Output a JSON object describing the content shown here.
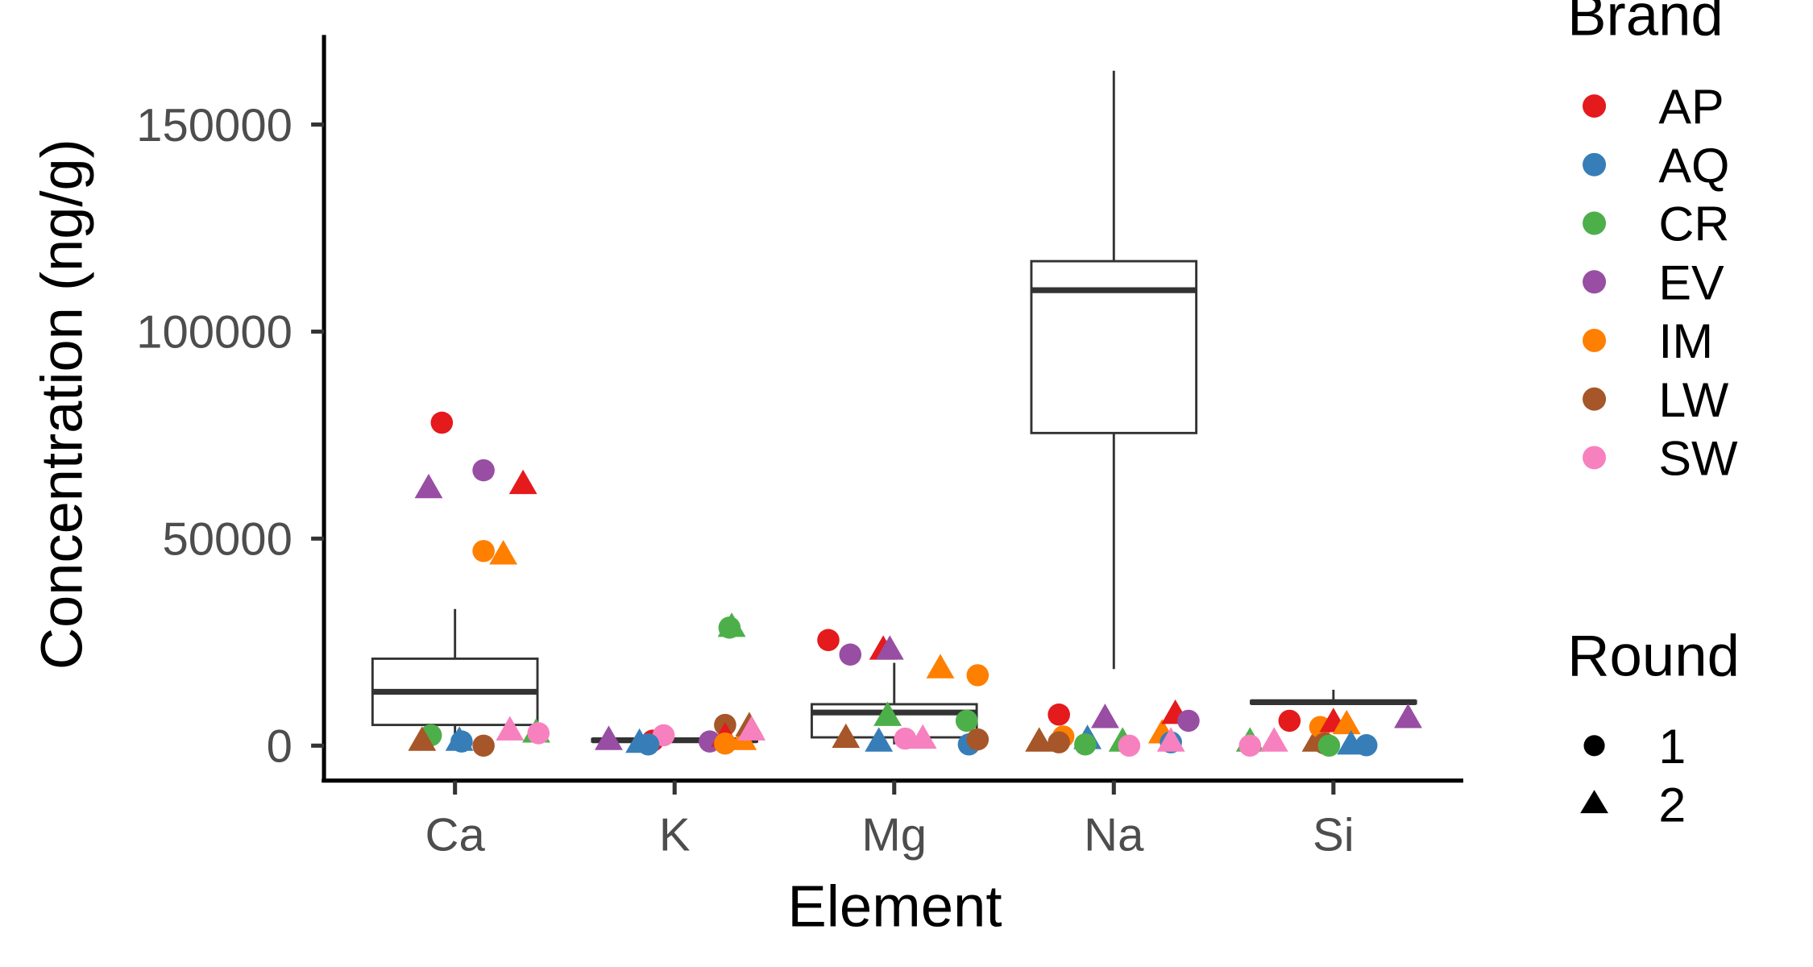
{
  "chart_data": {
    "type": "box+scatter",
    "xlabel": "Element",
    "ylabel": "Concentration (ng/g)",
    "ylim": [
      -8500,
      172000
    ],
    "yticks": [
      0,
      50000,
      100000,
      150000
    ],
    "ytick_labels": [
      "0",
      "50000",
      "100000",
      "150000"
    ],
    "categories": [
      "Ca",
      "K",
      "Mg",
      "Na",
      "Si"
    ],
    "grid": false,
    "legend_placement": "right",
    "legend": {
      "brand_title": "Brand",
      "brands": [
        {
          "name": "AP",
          "color": "#E41A1C"
        },
        {
          "name": "AQ",
          "color": "#377EB8"
        },
        {
          "name": "CR",
          "color": "#4DAF4A"
        },
        {
          "name": "EV",
          "color": "#984EA3"
        },
        {
          "name": "IM",
          "color": "#FF7F00"
        },
        {
          "name": "LW",
          "color": "#A65628"
        },
        {
          "name": "SW",
          "color": "#F781BF"
        }
      ],
      "round_title": "Round",
      "rounds": [
        {
          "name": "1",
          "shape": "circle"
        },
        {
          "name": "2",
          "shape": "triangle"
        }
      ]
    },
    "boxes": [
      {
        "category": "Ca",
        "low": 0,
        "q1": 5000,
        "median": 13000,
        "q3": 21000,
        "high": 33000
      },
      {
        "category": "K",
        "low": 800,
        "q1": 1000,
        "median": 1300,
        "q3": 1600,
        "high": 2000
      },
      {
        "category": "Mg",
        "low": 300,
        "q1": 2000,
        "median": 8000,
        "q3": 10000,
        "high": 20000
      },
      {
        "category": "Na",
        "low": 18500,
        "q1": 75500,
        "median": 110000,
        "q3": 117000,
        "high": 163000
      },
      {
        "category": "Si",
        "low": 9800,
        "q1": 10200,
        "median": 10500,
        "q3": 10800,
        "high": 13500
      }
    ],
    "points": [
      {
        "element": "Ca",
        "brand": "AP",
        "round": "1",
        "value": 78000
      },
      {
        "element": "Ca",
        "brand": "EV",
        "round": "2",
        "value": 62000
      },
      {
        "element": "Ca",
        "brand": "EV",
        "round": "1",
        "value": 66500
      },
      {
        "element": "Ca",
        "brand": "AP",
        "round": "2",
        "value": 63000
      },
      {
        "element": "Ca",
        "brand": "IM",
        "round": "1",
        "value": 47000
      },
      {
        "element": "Ca",
        "brand": "IM",
        "round": "2",
        "value": 46000
      },
      {
        "element": "Ca",
        "brand": "CR",
        "round": "1",
        "value": 2500
      },
      {
        "element": "Ca",
        "brand": "LW",
        "round": "2",
        "value": 1000
      },
      {
        "element": "Ca",
        "brand": "AQ",
        "round": "1",
        "value": 1000
      },
      {
        "element": "Ca",
        "brand": "AQ",
        "round": "2",
        "value": 1000
      },
      {
        "element": "Ca",
        "brand": "LW",
        "round": "1",
        "value": 0
      },
      {
        "element": "Ca",
        "brand": "SW",
        "round": "2",
        "value": 3500
      },
      {
        "element": "Ca",
        "brand": "CR",
        "round": "2",
        "value": 3000
      },
      {
        "element": "Ca",
        "brand": "SW",
        "round": "1",
        "value": 3000
      },
      {
        "element": "K",
        "brand": "EV",
        "round": "2",
        "value": 1200
      },
      {
        "element": "K",
        "brand": "AQ",
        "round": "2",
        "value": 500
      },
      {
        "element": "K",
        "brand": "AP",
        "round": "1",
        "value": 1200
      },
      {
        "element": "K",
        "brand": "SW",
        "round": "1",
        "value": 2500
      },
      {
        "element": "K",
        "brand": "AQ",
        "round": "1",
        "value": 300
      },
      {
        "element": "K",
        "brand": "EV",
        "round": "1",
        "value": 1000
      },
      {
        "element": "K",
        "brand": "LW",
        "round": "1",
        "value": 5000
      },
      {
        "element": "K",
        "brand": "CR",
        "round": "2",
        "value": 28500
      },
      {
        "element": "K",
        "brand": "CR",
        "round": "1",
        "value": 28500
      },
      {
        "element": "K",
        "brand": "AP",
        "round": "2",
        "value": 2000
      },
      {
        "element": "K",
        "brand": "IM",
        "round": "1",
        "value": 500
      },
      {
        "element": "K",
        "brand": "IM",
        "round": "2",
        "value": 1200
      },
      {
        "element": "K",
        "brand": "LW",
        "round": "2",
        "value": 4500
      },
      {
        "element": "K",
        "brand": "SW",
        "round": "2",
        "value": 3500
      },
      {
        "element": "Mg",
        "brand": "AP",
        "round": "1",
        "value": 25500
      },
      {
        "element": "Mg",
        "brand": "EV",
        "round": "1",
        "value": 22000
      },
      {
        "element": "Mg",
        "brand": "AP",
        "round": "2",
        "value": 23000
      },
      {
        "element": "Mg",
        "brand": "EV",
        "round": "2",
        "value": 23000
      },
      {
        "element": "Mg",
        "brand": "IM",
        "round": "2",
        "value": 18500
      },
      {
        "element": "Mg",
        "brand": "IM",
        "round": "1",
        "value": 17000
      },
      {
        "element": "Mg",
        "brand": "CR",
        "round": "2",
        "value": 7000
      },
      {
        "element": "Mg",
        "brand": "CR",
        "round": "1",
        "value": 6000
      },
      {
        "element": "Mg",
        "brand": "LW",
        "round": "2",
        "value": 1700
      },
      {
        "element": "Mg",
        "brand": "AQ",
        "round": "2",
        "value": 800
      },
      {
        "element": "Mg",
        "brand": "SW",
        "round": "1",
        "value": 1700
      },
      {
        "element": "Mg",
        "brand": "SW",
        "round": "2",
        "value": 1500
      },
      {
        "element": "Mg",
        "brand": "AQ",
        "round": "1",
        "value": 300
      },
      {
        "element": "Mg",
        "brand": "LW",
        "round": "1",
        "value": 1500
      },
      {
        "element": "Na",
        "brand": "LW",
        "round": "2",
        "value": 800
      },
      {
        "element": "Na",
        "brand": "AP",
        "round": "1",
        "value": 7500
      },
      {
        "element": "Na",
        "brand": "IM",
        "round": "1",
        "value": 2200
      },
      {
        "element": "Na",
        "brand": "LW",
        "round": "1",
        "value": 800
      },
      {
        "element": "Na",
        "brand": "AQ",
        "round": "2",
        "value": 1400
      },
      {
        "element": "Na",
        "brand": "CR",
        "round": "1",
        "value": 300
      },
      {
        "element": "Na",
        "brand": "EV",
        "round": "2",
        "value": 6500
      },
      {
        "element": "Na",
        "brand": "CR",
        "round": "2",
        "value": 800
      },
      {
        "element": "Na",
        "brand": "SW",
        "round": "1",
        "value": 0
      },
      {
        "element": "Na",
        "brand": "IM",
        "round": "2",
        "value": 2800
      },
      {
        "element": "Na",
        "brand": "AP",
        "round": "2",
        "value": 7500
      },
      {
        "element": "Na",
        "brand": "AQ",
        "round": "1",
        "value": 800
      },
      {
        "element": "Na",
        "brand": "SW",
        "round": "2",
        "value": 800
      },
      {
        "element": "Na",
        "brand": "EV",
        "round": "1",
        "value": 6000
      },
      {
        "element": "Si",
        "brand": "CR",
        "round": "2",
        "value": 800
      },
      {
        "element": "Si",
        "brand": "SW",
        "round": "1",
        "value": 0
      },
      {
        "element": "Si",
        "brand": "SW",
        "round": "2",
        "value": 800
      },
      {
        "element": "Si",
        "brand": "AP",
        "round": "1",
        "value": 6000
      },
      {
        "element": "Si",
        "brand": "LW",
        "round": "2",
        "value": 800
      },
      {
        "element": "Si",
        "brand": "IM",
        "round": "1",
        "value": 4500
      },
      {
        "element": "Si",
        "brand": "LW",
        "round": "1",
        "value": 500
      },
      {
        "element": "Si",
        "brand": "AP",
        "round": "2",
        "value": 5500
      },
      {
        "element": "Si",
        "brand": "CR",
        "round": "1",
        "value": 0
      },
      {
        "element": "Si",
        "brand": "IM",
        "round": "2",
        "value": 5000
      },
      {
        "element": "Si",
        "brand": "AQ",
        "round": "2",
        "value": 100
      },
      {
        "element": "Si",
        "brand": "AQ",
        "round": "1",
        "value": 100
      },
      {
        "element": "Si",
        "brand": "EV",
        "round": "2",
        "value": 6500
      }
    ]
  }
}
